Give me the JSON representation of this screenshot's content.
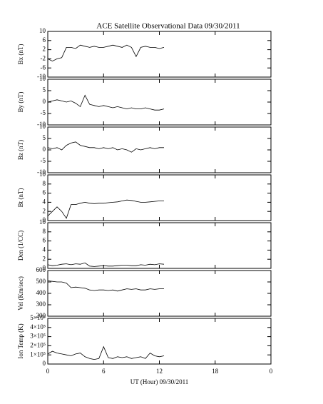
{
  "chart_data": [
    {
      "type": "line",
      "title": "ACE Satellite Observational Data   09/30/2011",
      "ylabel": "Bx (nT)",
      "xlim": [
        0,
        24
      ],
      "xticks": [
        0,
        6,
        12,
        18,
        {
          "value": 24,
          "label": "0"
        }
      ],
      "ylim": [
        -10,
        10
      ],
      "yticks": [
        -10,
        -6,
        -2,
        2,
        6,
        10
      ],
      "x": [
        0,
        0.5,
        1,
        1.5,
        2,
        2.5,
        3,
        3.5,
        4,
        4.5,
        5,
        5.5,
        6,
        6.5,
        7,
        7.5,
        8,
        8.5,
        9,
        9.5,
        10,
        10.5,
        11,
        11.5,
        12,
        12.5
      ],
      "values": [
        -2,
        -3,
        -2,
        -1.5,
        3,
        3,
        2.5,
        4,
        3.5,
        3,
        3.5,
        3,
        3,
        3.5,
        4,
        3.5,
        3,
        4,
        3,
        -1,
        3,
        3.5,
        3,
        3,
        2.5,
        3
      ]
    },
    {
      "type": "line",
      "ylabel": "By (nT)",
      "xlim": [
        0,
        24
      ],
      "xticks": [
        0,
        6,
        12,
        18,
        {
          "value": 24,
          "label": "0"
        }
      ],
      "ylim": [
        -10,
        10
      ],
      "yticks": [
        -10,
        -5,
        0,
        5,
        10
      ],
      "x": [
        0,
        0.5,
        1,
        1.5,
        2,
        2.5,
        3,
        3.5,
        4,
        4.5,
        5,
        5.5,
        6,
        6.5,
        7,
        7.5,
        8,
        8.5,
        9,
        9.5,
        10,
        10.5,
        11,
        11.5,
        12,
        12.5
      ],
      "values": [
        0,
        0.5,
        1,
        0.5,
        0,
        0.5,
        -0.5,
        -2,
        3,
        -1,
        -1.5,
        -2,
        -1.5,
        -2,
        -2.5,
        -2,
        -2.5,
        -3,
        -2.5,
        -3,
        -3,
        -2.5,
        -3,
        -3.5,
        -3.5,
        -3
      ]
    },
    {
      "type": "line",
      "ylabel": "Bz (nT)",
      "xlim": [
        0,
        24
      ],
      "xticks": [
        0,
        6,
        12,
        18,
        {
          "value": 24,
          "label": "0"
        }
      ],
      "ylim": [
        -10,
        10
      ],
      "yticks": [
        -10,
        -5,
        0,
        5,
        10
      ],
      "x": [
        0,
        0.5,
        1,
        1.5,
        2,
        2.5,
        3,
        3.5,
        4,
        4.5,
        5,
        5.5,
        6,
        6.5,
        7,
        7.5,
        8,
        8.5,
        9,
        9.5,
        10,
        10.5,
        11,
        11.5,
        12,
        12.5
      ],
      "values": [
        1,
        0.5,
        1,
        0,
        2,
        3,
        3.5,
        2,
        1.5,
        1,
        1,
        0.5,
        1,
        0.5,
        1,
        0,
        0.5,
        0,
        -1,
        0.5,
        0,
        0.5,
        1,
        0.5,
        1,
        1
      ]
    },
    {
      "type": "line",
      "ylabel": "Bt (nT)",
      "xlim": [
        0,
        24
      ],
      "xticks": [
        0,
        6,
        12,
        18,
        {
          "value": 24,
          "label": "0"
        }
      ],
      "ylim": [
        0,
        10
      ],
      "yticks": [
        0,
        2,
        4,
        6,
        8,
        10
      ],
      "x": [
        0,
        0.5,
        1,
        1.5,
        2,
        2.5,
        3,
        3.5,
        4,
        4.5,
        5,
        5.5,
        6,
        6.5,
        7,
        7.5,
        8,
        8.5,
        9,
        9.5,
        10,
        10.5,
        11,
        11.5,
        12,
        12.5
      ],
      "values": [
        1,
        2,
        3,
        2,
        0.5,
        3.5,
        3.5,
        3.8,
        4,
        3.8,
        3.7,
        3.8,
        3.8,
        3.9,
        4,
        4.1,
        4.3,
        4.5,
        4.4,
        4.2,
        4,
        4,
        4.1,
        4.2,
        4.3,
        4.3
      ]
    },
    {
      "type": "line",
      "ylabel": "Den (1/CC)",
      "xlim": [
        0,
        24
      ],
      "xticks": [
        0,
        6,
        12,
        18,
        {
          "value": 24,
          "label": "0"
        }
      ],
      "ylim": [
        0,
        10
      ],
      "yticks": [
        0,
        2,
        4,
        6,
        8,
        10
      ],
      "x": [
        0,
        0.5,
        1,
        1.5,
        2,
        2.5,
        3,
        3.5,
        4,
        4.5,
        5,
        5.5,
        6,
        6.5,
        7,
        7.5,
        8,
        8.5,
        9,
        9.5,
        10,
        10.5,
        11,
        11.5,
        12,
        12.5
      ],
      "values": [
        0.8,
        0.6,
        0.7,
        0.9,
        1,
        0.8,
        1,
        0.9,
        1.2,
        0.5,
        0.4,
        0.5,
        0.6,
        0.5,
        0.5,
        0.6,
        0.7,
        0.7,
        0.6,
        0.6,
        0.8,
        0.7,
        0.9,
        0.8,
        1,
        0.9
      ]
    },
    {
      "type": "line",
      "ylabel": "Vel (Km/sec)",
      "xlim": [
        0,
        24
      ],
      "xticks": [
        0,
        6,
        12,
        18,
        {
          "value": 24,
          "label": "0"
        }
      ],
      "ylim": [
        200,
        600
      ],
      "yticks": [
        200,
        300,
        400,
        500,
        600
      ],
      "x": [
        0,
        0.5,
        1,
        1.5,
        2,
        2.5,
        3,
        3.5,
        4,
        4.5,
        5,
        5.5,
        6,
        6.5,
        7,
        7.5,
        8,
        8.5,
        9,
        9.5,
        10,
        10.5,
        11,
        11.5,
        12,
        12.5
      ],
      "values": [
        510,
        505,
        500,
        500,
        490,
        450,
        455,
        450,
        445,
        430,
        425,
        430,
        430,
        425,
        430,
        420,
        430,
        440,
        435,
        440,
        430,
        430,
        440,
        435,
        440,
        440
      ]
    },
    {
      "type": "line",
      "ylabel": "Ion Temp (K)",
      "xlabel": "UT (Hour)  09/30/2011",
      "xlim": [
        0,
        24
      ],
      "xticks": [
        0,
        6,
        12,
        18,
        {
          "value": 24,
          "label": "0"
        }
      ],
      "ylim": [
        0,
        500000
      ],
      "yticks": [
        0,
        {
          "value": 100000,
          "label": "1×10⁵"
        },
        {
          "value": 200000,
          "label": "2×10⁵"
        },
        {
          "value": 300000,
          "label": "3×10⁵"
        },
        {
          "value": 400000,
          "label": "4×10⁵"
        },
        {
          "value": 500000,
          "label": "5×10⁵"
        }
      ],
      "x": [
        0,
        0.5,
        1,
        1.5,
        2,
        2.5,
        3,
        3.5,
        4,
        4.5,
        5,
        5.5,
        6,
        6.5,
        7,
        7.5,
        8,
        8.5,
        9,
        9.5,
        10,
        10.5,
        11,
        11.5,
        12,
        12.5
      ],
      "values": [
        110000,
        140000,
        120000,
        110000,
        100000,
        90000,
        110000,
        120000,
        80000,
        60000,
        50000,
        60000,
        190000,
        70000,
        60000,
        80000,
        70000,
        80000,
        60000,
        70000,
        80000,
        60000,
        120000,
        90000,
        80000,
        90000
      ]
    }
  ]
}
